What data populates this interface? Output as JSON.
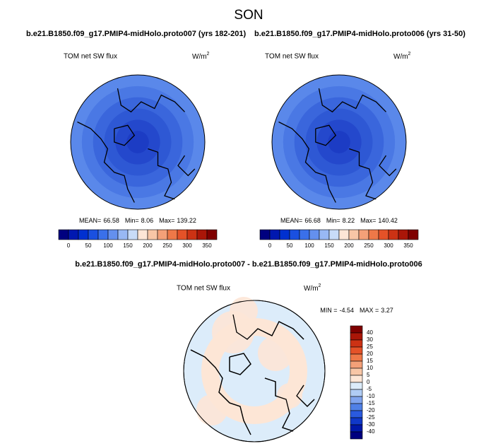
{
  "title": "SON",
  "panels": [
    {
      "case": "b.e21.B1850.f09_g17.PMIP4-midHolo.proto007 (yrs 182-201)",
      "variable": "TOM net SW flux",
      "units": {
        "base": "W/m",
        "sup": "2"
      },
      "stats": {
        "mean_label": "MEAN=",
        "mean": 66.58,
        "min_label": "Min=",
        "min": 8.06,
        "max_label": "Max=",
        "max": 139.22
      },
      "colorbar": {
        "labels": [
          0,
          50,
          100,
          150,
          200,
          250,
          300,
          350
        ],
        "colors": [
          "#00007f",
          "#0018b0",
          "#0030d0",
          "#1a50e0",
          "#3a70ea",
          "#6490ee",
          "#98b8f4",
          "#c8dcf8",
          "#fde6d6",
          "#f8c6a6",
          "#f4a078",
          "#ee7848",
          "#e45228",
          "#cc3214",
          "#aa1608",
          "#7f0000"
        ]
      }
    },
    {
      "case": "b.e21.B1850.f09_g17.PMIP4-midHolo.proto006 (yrs 31-50)",
      "variable": "TOM net SW flux",
      "units": {
        "base": "W/m",
        "sup": "2"
      },
      "stats": {
        "mean_label": "MEAN=",
        "mean": 66.68,
        "min_label": "Min=",
        "min": 8.22,
        "max_label": "Max=",
        "max": 140.42
      },
      "colorbar": {
        "labels": [
          0,
          50,
          100,
          150,
          200,
          250,
          300,
          350
        ],
        "colors": [
          "#00007f",
          "#0018b0",
          "#0030d0",
          "#1a50e0",
          "#3a70ea",
          "#6490ee",
          "#98b8f4",
          "#c8dcf8",
          "#fde6d6",
          "#f8c6a6",
          "#f4a078",
          "#ee7848",
          "#e45228",
          "#cc3214",
          "#aa1608",
          "#7f0000"
        ]
      }
    }
  ],
  "difference": {
    "case": "b.e21.B1850.f09_g17.PMIP4-midHolo.proto007 - b.e21.B1850.f09_g17.PMIP4-midHolo.proto006",
    "variable": "TOM net SW flux",
    "units": {
      "base": "W/m",
      "sup": "2"
    },
    "stats": {
      "min_label": "MIN =",
      "min": -4.54,
      "max_label": "MAX =",
      "max": 3.27
    },
    "colorbar": {
      "labels": [
        40,
        30,
        25,
        20,
        15,
        10,
        5,
        0,
        -5,
        -10,
        -15,
        -20,
        -25,
        -30,
        -40
      ],
      "colors": [
        "#7f0000",
        "#aa1608",
        "#cc3214",
        "#e45228",
        "#ee7848",
        "#f4a078",
        "#f8c6a6",
        "#fde6d6",
        "#dcecfa",
        "#b0ccf4",
        "#80a4ee",
        "#5080e6",
        "#2a5ade",
        "#1038c8",
        "#0018a8",
        "#00007f"
      ]
    }
  }
}
